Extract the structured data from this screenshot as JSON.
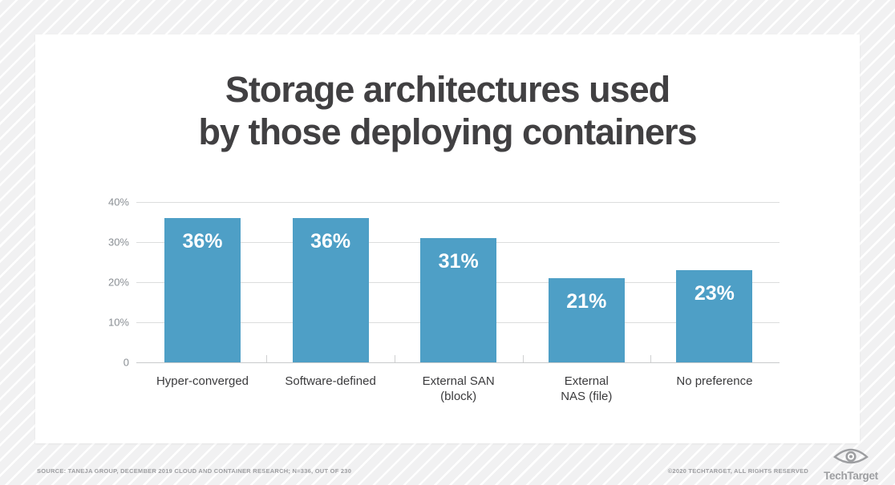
{
  "chart_data": {
    "type": "bar",
    "title": "Storage architectures used by those deploying containers",
    "title_lines": [
      "Storage architectures used",
      "by those deploying containers"
    ],
    "categories": [
      "Hyper-converged",
      "Software-defined",
      "External SAN (block)",
      "External NAS (file)",
      "No preference"
    ],
    "category_label_lines": [
      [
        "Hyper-converged"
      ],
      [
        "Software-defined"
      ],
      [
        "External SAN",
        "(block)"
      ],
      [
        "External",
        "NAS (file)"
      ],
      [
        "No preference"
      ]
    ],
    "values": [
      36,
      36,
      31,
      21,
      23
    ],
    "value_labels": [
      "36%",
      "36%",
      "31%",
      "21%",
      "23%"
    ],
    "xlabel": "",
    "ylabel": "",
    "ylim": [
      0,
      40
    ],
    "y_ticks": [
      {
        "label": "40%",
        "value": 40
      },
      {
        "label": "30%",
        "value": 30
      },
      {
        "label": "20%",
        "value": 20
      },
      {
        "label": "10%",
        "value": 10
      },
      {
        "label": "0",
        "value": 0
      }
    ],
    "grid": true,
    "legend": "none",
    "bar_color": "#4e9fc6",
    "value_label_color": "#ffffff",
    "title_color": "#414042"
  },
  "footer": {
    "source": "SOURCE: TANEJA GROUP, DECEMBER 2019 CLOUD AND CONTAINER RESEARCH; N=336, OUT OF 230",
    "copyright": "©2020 TECHTARGET, ALL RIGHTS RESERVED",
    "logo_text": "TechTarget"
  }
}
